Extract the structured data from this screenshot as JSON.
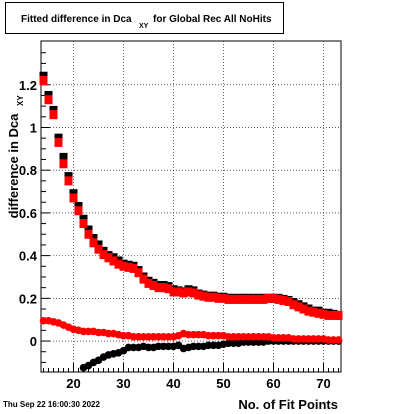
{
  "title_box": {
    "main": "Fitted difference in Dca",
    "subscript": "XY",
    "rest": "for Global Rec All NoHits"
  },
  "footer": {
    "timestamp": "Thu Sep 22 16:00:30 2022"
  },
  "chart_data": {
    "type": "scatter",
    "title": "Fitted difference in Dca_XY for Global Rec All NoHits",
    "xlabel": "No. of Fit Points",
    "ylabel": "difference in Dca",
    "ylabel_subscript": "XY",
    "xlim": [
      13.5,
      73.5
    ],
    "ylim": [
      -0.145,
      1.405
    ],
    "xticks": [
      20,
      30,
      40,
      50,
      60,
      70
    ],
    "yticks": [
      0,
      0.2,
      0.4,
      0.6,
      0.8,
      1,
      1.2
    ],
    "ytick_labels": [
      "0",
      "0.2",
      "0.4",
      "0.6",
      "0.8",
      "1",
      "1.2"
    ],
    "grid": true,
    "series": [
      {
        "marker": "square",
        "color": "#000000",
        "x": [
          14,
          15,
          16,
          17,
          18,
          19,
          20,
          21,
          22,
          23,
          24,
          25,
          26,
          27,
          28,
          29,
          30,
          31,
          32,
          33,
          34,
          35,
          36,
          37,
          38,
          39,
          40,
          41,
          42,
          43,
          44,
          45,
          46,
          47,
          48,
          49,
          50,
          51,
          52,
          53,
          54,
          55,
          56,
          57,
          58,
          59,
          60,
          61,
          62,
          63,
          64,
          65,
          66,
          67,
          68,
          69,
          70,
          71,
          72,
          73
        ],
        "y": [
          1.24,
          1.15,
          1.08,
          0.95,
          0.86,
          0.77,
          0.69,
          0.63,
          0.57,
          0.52,
          0.48,
          0.45,
          0.42,
          0.4,
          0.39,
          0.375,
          0.36,
          0.355,
          0.35,
          0.33,
          0.3,
          0.28,
          0.27,
          0.26,
          0.26,
          0.255,
          0.24,
          0.235,
          0.23,
          0.24,
          0.235,
          0.22,
          0.215,
          0.21,
          0.21,
          0.205,
          0.205,
          0.2,
          0.2,
          0.2,
          0.2,
          0.2,
          0.2,
          0.2,
          0.2,
          0.2,
          0.2,
          0.2,
          0.195,
          0.19,
          0.18,
          0.17,
          0.16,
          0.15,
          0.14,
          0.14,
          0.13,
          0.13,
          0.125,
          0.12
        ]
      },
      {
        "marker": "square",
        "color": "#ff0000",
        "x": [
          14,
          15,
          16,
          17,
          18,
          19,
          20,
          21,
          22,
          23,
          24,
          25,
          26,
          27,
          28,
          29,
          30,
          31,
          32,
          33,
          34,
          35,
          36,
          37,
          38,
          39,
          40,
          41,
          42,
          43,
          44,
          45,
          46,
          47,
          48,
          49,
          50,
          51,
          52,
          53,
          54,
          55,
          56,
          57,
          58,
          59,
          60,
          61,
          62,
          63,
          64,
          65,
          66,
          67,
          68,
          69,
          70,
          71,
          72,
          73
        ],
        "y": [
          1.22,
          1.13,
          1.06,
          0.93,
          0.83,
          0.75,
          0.67,
          0.61,
          0.55,
          0.5,
          0.46,
          0.43,
          0.405,
          0.39,
          0.375,
          0.36,
          0.35,
          0.345,
          0.34,
          0.32,
          0.29,
          0.27,
          0.26,
          0.25,
          0.25,
          0.245,
          0.23,
          0.23,
          0.225,
          0.23,
          0.225,
          0.215,
          0.21,
          0.205,
          0.205,
          0.2,
          0.2,
          0.195,
          0.195,
          0.195,
          0.195,
          0.195,
          0.195,
          0.195,
          0.195,
          0.2,
          0.2,
          0.195,
          0.19,
          0.185,
          0.17,
          0.16,
          0.15,
          0.14,
          0.135,
          0.13,
          0.125,
          0.12,
          0.12,
          0.12
        ]
      },
      {
        "marker": "circle",
        "color": "#000000",
        "x": [
          22,
          23,
          24,
          25,
          26,
          27,
          28,
          29,
          30,
          31,
          32,
          33,
          34,
          35,
          36,
          37,
          38,
          39,
          40,
          41,
          42,
          43,
          44,
          45,
          46,
          47,
          48,
          49,
          50,
          51,
          52,
          53,
          54,
          55,
          56,
          57,
          58,
          59,
          60,
          61,
          62,
          63,
          64,
          65,
          66,
          67,
          68,
          69,
          70,
          71,
          72,
          73
        ],
        "y": [
          -0.125,
          -0.115,
          -0.1,
          -0.09,
          -0.075,
          -0.065,
          -0.06,
          -0.055,
          -0.045,
          -0.03,
          -0.03,
          -0.03,
          -0.025,
          -0.03,
          -0.03,
          -0.025,
          -0.025,
          -0.025,
          -0.025,
          -0.02,
          -0.035,
          -0.03,
          -0.025,
          -0.025,
          -0.025,
          -0.02,
          -0.02,
          -0.02,
          -0.015,
          -0.01,
          -0.01,
          -0.01,
          -0.005,
          -0.005,
          -0.005,
          -0.005,
          -0.005,
          0,
          0,
          0,
          0,
          0,
          0,
          0,
          0,
          0,
          0,
          0,
          0,
          0,
          0,
          0
        ]
      },
      {
        "marker": "circle",
        "color": "#ff0000",
        "x": [
          14,
          15,
          16,
          17,
          18,
          19,
          20,
          21,
          22,
          23,
          24,
          25,
          26,
          27,
          28,
          29,
          30,
          31,
          32,
          33,
          34,
          35,
          36,
          37,
          38,
          39,
          40,
          41,
          42,
          43,
          44,
          45,
          46,
          47,
          48,
          49,
          50,
          51,
          52,
          53,
          54,
          55,
          56,
          57,
          58,
          59,
          60,
          61,
          62,
          63,
          64,
          65,
          66,
          67,
          68,
          69,
          70,
          71,
          72,
          73
        ],
        "y": [
          0.095,
          0.095,
          0.09,
          0.085,
          0.075,
          0.065,
          0.055,
          0.05,
          0.045,
          0.045,
          0.045,
          0.04,
          0.04,
          0.035,
          0.035,
          0.03,
          0.025,
          0.025,
          0.02,
          0.02,
          0.02,
          0.02,
          0.02,
          0.02,
          0.02,
          0.02,
          0.02,
          0.025,
          0.035,
          0.03,
          0.03,
          0.03,
          0.03,
          0.025,
          0.025,
          0.025,
          0.025,
          0.02,
          0.02,
          0.02,
          0.02,
          0.02,
          0.02,
          0.02,
          0.02,
          0.02,
          0.015,
          0.015,
          0.015,
          0.015,
          0.01,
          0.01,
          0.01,
          0.01,
          0.01,
          0.01,
          0.01,
          0.005,
          0.005,
          0.005
        ]
      }
    ]
  }
}
